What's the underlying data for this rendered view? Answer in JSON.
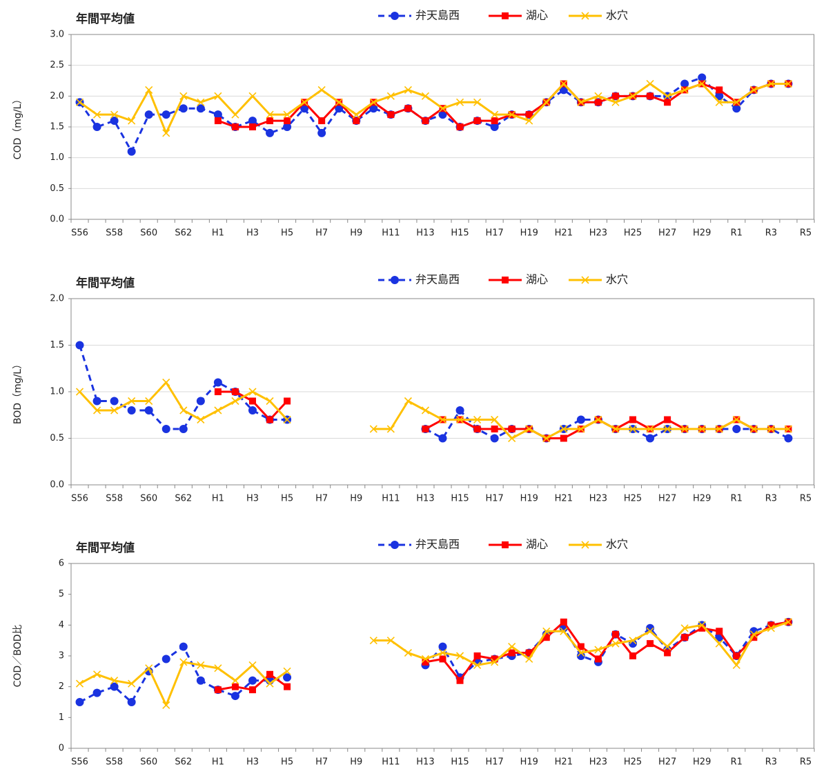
{
  "chart_data": [
    {
      "type": "line",
      "title": "年間平均値",
      "y_label": "COD（mg/L）",
      "categories": [
        "S56",
        null,
        "S58",
        null,
        "S60",
        null,
        "S62",
        null,
        "H1",
        null,
        "H3",
        null,
        "H5",
        null,
        "H7",
        null,
        "H9",
        null,
        "H11",
        null,
        "H13",
        null,
        "H15",
        null,
        "H17",
        null,
        "H19",
        null,
        "H21",
        null,
        "H23",
        null,
        "H25",
        null,
        "H27",
        null,
        "H29",
        null,
        "R1",
        null,
        "R3",
        null,
        "R5"
      ],
      "ylim": [
        0,
        3
      ],
      "yticks": [
        {
          "value": 0,
          "label": "0.0"
        },
        0.5,
        {
          "value": 1,
          "label": "1.0"
        },
        1.5,
        {
          "value": 2,
          "label": "2.0"
        },
        2.5,
        {
          "value": 3,
          "label": "3.0"
        }
      ],
      "grid": true,
      "legend": "top",
      "series": [
        {
          "name": "弁天島西",
          "color": "#1a33e0",
          "marker": "circle",
          "line_style": "dashed",
          "values": [
            1.9,
            1.5,
            1.6,
            1.1,
            1.7,
            1.7,
            1.8,
            1.8,
            1.7,
            1.5,
            1.6,
            1.4,
            1.5,
            1.8,
            1.4,
            1.8,
            1.6,
            1.8,
            1.7,
            1.8,
            1.6,
            1.7,
            1.5,
            1.6,
            1.5,
            1.7,
            1.7,
            1.9,
            2.1,
            1.9,
            1.9,
            2.0,
            2.0,
            2.0,
            2.0,
            2.2,
            2.3,
            2.0,
            1.8,
            2.1,
            2.2,
            2.2,
            null
          ]
        },
        {
          "name": "湖心",
          "color": "#ff0000",
          "marker": "square",
          "line_style": "solid",
          "values": [
            null,
            null,
            null,
            null,
            null,
            null,
            null,
            null,
            1.6,
            1.5,
            1.5,
            1.6,
            1.6,
            1.9,
            1.6,
            1.9,
            1.6,
            1.9,
            1.7,
            1.8,
            1.6,
            1.8,
            1.5,
            1.6,
            1.6,
            1.7,
            1.7,
            1.9,
            2.2,
            1.9,
            1.9,
            2.0,
            2.0,
            2.0,
            1.9,
            2.1,
            2.2,
            2.1,
            1.9,
            2.1,
            2.2,
            2.2,
            null
          ]
        },
        {
          "name": "水穴",
          "color": "#ffc000",
          "marker": "x",
          "line_style": "solid",
          "values": [
            1.9,
            1.7,
            1.7,
            1.6,
            2.1,
            1.4,
            2.0,
            1.9,
            2.0,
            1.7,
            2.0,
            1.7,
            1.7,
            1.9,
            2.1,
            1.9,
            1.7,
            1.9,
            2.0,
            2.1,
            2.0,
            1.8,
            1.9,
            1.9,
            1.7,
            1.7,
            1.6,
            1.9,
            2.2,
            1.9,
            2.0,
            1.9,
            2.0,
            2.2,
            2.0,
            2.1,
            2.2,
            1.9,
            1.9,
            2.1,
            2.2,
            2.2,
            null
          ]
        }
      ]
    },
    {
      "type": "line",
      "title": "年間平均値",
      "y_label": "BOD（mg/L）",
      "categories": [
        "S56",
        null,
        "S58",
        null,
        "S60",
        null,
        "S62",
        null,
        "H1",
        null,
        "H3",
        null,
        "H5",
        null,
        "H7",
        null,
        "H9",
        null,
        "H11",
        null,
        "H13",
        null,
        "H15",
        null,
        "H17",
        null,
        "H19",
        null,
        "H21",
        null,
        "H23",
        null,
        "H25",
        null,
        "H27",
        null,
        "H29",
        null,
        "R1",
        null,
        "R3",
        null,
        "R5"
      ],
      "ylim": [
        0,
        2
      ],
      "yticks": [
        {
          "value": 0,
          "label": "0.0"
        },
        0.5,
        {
          "value": 1,
          "label": "1.0"
        },
        1.5,
        {
          "value": 2,
          "label": "2.0"
        }
      ],
      "grid": true,
      "legend": "top",
      "series": [
        {
          "name": "弁天島西",
          "color": "#1a33e0",
          "marker": "circle",
          "line_style": "dashed",
          "values": [
            1.5,
            0.9,
            0.9,
            0.8,
            0.8,
            0.6,
            0.6,
            0.9,
            1.1,
            1.0,
            0.8,
            0.7,
            0.7,
            null,
            null,
            null,
            null,
            null,
            null,
            null,
            0.6,
            0.5,
            0.8,
            0.6,
            0.5,
            0.6,
            0.6,
            0.5,
            0.6,
            0.7,
            0.7,
            0.6,
            0.6,
            0.5,
            0.6,
            0.6,
            0.6,
            0.6,
            0.6,
            0.6,
            0.6,
            0.5,
            null
          ]
        },
        {
          "name": "湖心",
          "color": "#ff0000",
          "marker": "square",
          "line_style": "solid",
          "values": [
            null,
            null,
            null,
            null,
            null,
            null,
            null,
            null,
            1.0,
            1.0,
            0.9,
            0.7,
            0.9,
            null,
            null,
            null,
            null,
            null,
            null,
            null,
            0.6,
            0.7,
            0.7,
            0.6,
            0.6,
            0.6,
            0.6,
            0.5,
            0.5,
            0.6,
            0.7,
            0.6,
            0.7,
            0.6,
            0.7,
            0.6,
            0.6,
            0.6,
            0.7,
            0.6,
            0.6,
            0.6,
            null
          ]
        },
        {
          "name": "水穴",
          "color": "#ffc000",
          "marker": "x",
          "line_style": "solid",
          "values": [
            1.0,
            0.8,
            0.8,
            0.9,
            0.9,
            1.1,
            0.8,
            0.7,
            0.8,
            0.9,
            1.0,
            0.9,
            0.7,
            null,
            null,
            null,
            null,
            0.6,
            0.6,
            0.9,
            0.8,
            0.7,
            0.7,
            0.7,
            0.7,
            0.5,
            0.6,
            0.5,
            0.6,
            0.6,
            0.7,
            0.6,
            0.6,
            0.6,
            0.6,
            0.6,
            0.6,
            0.6,
            0.7,
            0.6,
            0.6,
            0.6,
            null
          ]
        }
      ]
    },
    {
      "type": "line",
      "title": "年間平均値",
      "y_label": "COD／BOD比",
      "categories": [
        "S56",
        null,
        "S58",
        null,
        "S60",
        null,
        "S62",
        null,
        "H1",
        null,
        "H3",
        null,
        "H5",
        null,
        "H7",
        null,
        "H9",
        null,
        "H11",
        null,
        "H13",
        null,
        "H15",
        null,
        "H17",
        null,
        "H19",
        null,
        "H21",
        null,
        "H23",
        null,
        "H25",
        null,
        "H27",
        null,
        "H29",
        null,
        "R1",
        null,
        "R3",
        null,
        "R5"
      ],
      "ylim": [
        0,
        6
      ],
      "yticks": [
        0,
        1,
        2,
        3,
        4,
        5,
        6
      ],
      "grid": false,
      "legend": "top",
      "series": [
        {
          "name": "弁天島西",
          "color": "#1a33e0",
          "marker": "circle",
          "line_style": "dashed",
          "values": [
            1.5,
            1.8,
            2.0,
            1.5,
            2.5,
            2.9,
            3.3,
            2.2,
            1.9,
            1.7,
            2.2,
            2.2,
            2.3,
            null,
            null,
            null,
            null,
            null,
            null,
            null,
            2.7,
            3.3,
            2.3,
            2.8,
            2.9,
            3.0,
            3.1,
            3.7,
            3.9,
            3.0,
            2.8,
            3.7,
            3.4,
            3.9,
            3.2,
            3.6,
            4.0,
            3.6,
            3.0,
            3.8,
            4.0,
            4.1,
            null
          ]
        },
        {
          "name": "湖心",
          "color": "#ff0000",
          "marker": "square",
          "line_style": "solid",
          "values": [
            null,
            null,
            null,
            null,
            null,
            null,
            null,
            null,
            1.9,
            2.0,
            1.9,
            2.4,
            2.0,
            null,
            null,
            null,
            null,
            null,
            null,
            null,
            2.8,
            2.9,
            2.2,
            3.0,
            2.9,
            3.1,
            3.1,
            3.6,
            4.1,
            3.3,
            2.9,
            3.7,
            3.0,
            3.4,
            3.1,
            3.6,
            3.9,
            3.8,
            3.0,
            3.6,
            4.0,
            4.1,
            null
          ]
        },
        {
          "name": "水穴",
          "color": "#ffc000",
          "marker": "x",
          "line_style": "solid",
          "values": [
            2.1,
            2.4,
            2.2,
            2.1,
            2.6,
            1.4,
            2.8,
            2.7,
            2.6,
            2.2,
            2.7,
            2.1,
            2.5,
            null,
            null,
            null,
            null,
            3.5,
            3.5,
            3.1,
            2.9,
            3.1,
            3.0,
            2.7,
            2.8,
            3.3,
            2.9,
            3.8,
            3.8,
            3.1,
            3.2,
            3.4,
            3.5,
            3.8,
            3.3,
            3.9,
            4.0,
            3.4,
            2.7,
            3.7,
            3.9,
            4.1,
            null
          ]
        }
      ]
    }
  ]
}
